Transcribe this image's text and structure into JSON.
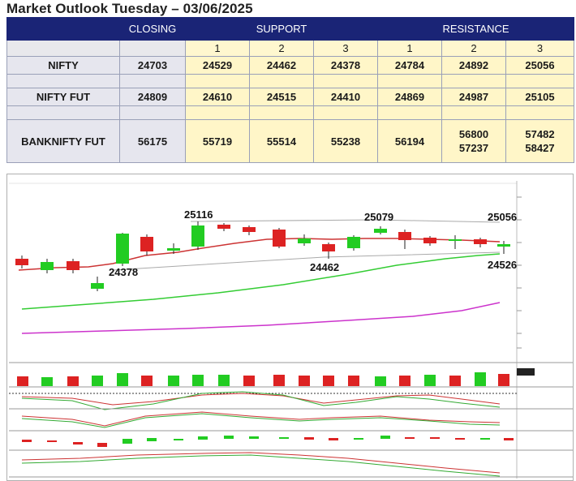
{
  "title": "Market Outlook Tuesday – 03/06/2025",
  "table": {
    "headers": {
      "closing": "CLOSING",
      "support": "SUPPORT",
      "resistance": "RESISTANCE"
    },
    "levels": [
      "1",
      "2",
      "3"
    ],
    "rows": [
      {
        "name": "NIFTY",
        "closing": "24703",
        "support": [
          "24529",
          "24462",
          "24378"
        ],
        "resistance": [
          "24784",
          "24892",
          "25056"
        ]
      },
      {
        "name": "NIFTY FUT",
        "closing": "24809",
        "support": [
          "24610",
          "24515",
          "24410"
        ],
        "resistance": [
          "24869",
          "24987",
          "25105"
        ]
      },
      {
        "name": "BANKNIFTY FUT",
        "closing": "56175",
        "support": [
          "55719",
          "55514",
          "55238"
        ],
        "resistance": [
          "56194",
          "56800 57237",
          "57482 58427"
        ]
      }
    ]
  },
  "chart": {
    "annotations": {
      "a": "25116",
      "b": "24378",
      "c": "25079",
      "d": "25056",
      "e": "24462",
      "f": "24526"
    },
    "colors": {
      "up": "#22cc22",
      "down": "#dd2222",
      "ma_short": "#cc3333",
      "ma_mid": "#33cc33",
      "ma_long": "#cc33cc",
      "bg": "#ffffff"
    }
  }
}
